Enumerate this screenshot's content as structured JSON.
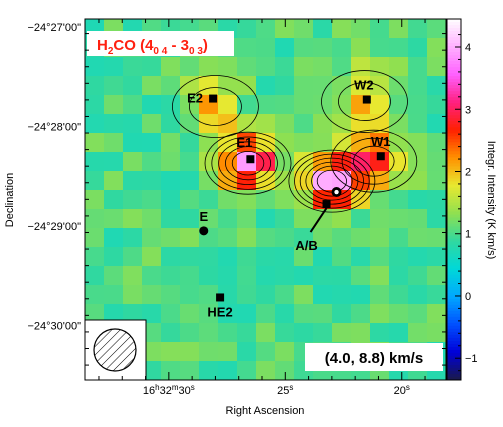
{
  "chart_data": {
    "type": "heatmap",
    "title_parts": {
      "pre": "H",
      "sub1": "2",
      "mid": "CO (4",
      "sub2": "0 4",
      "dash": " - 3",
      "sub3": "0 3",
      "post": ")"
    },
    "xlabel": "Right Ascension",
    "ylabel": "Declination",
    "colorbar_label": "Integr. Intensity (K km/s)",
    "velocity_range_label": "(4.0, 8.8) km/s",
    "x_tick_labels": [
      "16h32m30s",
      "25s",
      "20s"
    ],
    "x_tick_text": [
      {
        "main": "16",
        "sup1": "h",
        "mid": "32",
        "sup2": "m",
        "end": "30",
        "sup3": "s"
      },
      {
        "main": "25",
        "sup3": "s"
      },
      {
        "main": "20",
        "sup3": "s"
      }
    ],
    "x_ticks_seconds": [
      30,
      25,
      20
    ],
    "y_tick_labels": [
      "−24°27'00\"",
      "−24°28'00\"",
      "−24°29'00\"",
      "−24°30'00\""
    ],
    "y_ticks_arcmin": [
      27,
      28,
      29,
      30
    ],
    "xlim_seconds": [
      33.6,
      18.1
    ],
    "ylim_arcmin": [
      30.55,
      26.92
    ],
    "colorbar_ticks": [
      -1,
      0,
      1,
      2,
      3,
      4
    ],
    "colorbar_range": [
      -1.35,
      4.45
    ],
    "colormap_stops": [
      "#1a1a4a",
      "#0000d8",
      "#0050ff",
      "#00a8ff",
      "#00d8d8",
      "#30d8a0",
      "#90e050",
      "#e8e830",
      "#ff9000",
      "#ff2000",
      "#ff2080",
      "#ff60ff",
      "#ffb0ff",
      "#ffffff"
    ],
    "background_level": 1.0,
    "emission_peaks": [
      {
        "name": "E1",
        "ra_s": 26.6,
        "dec_arcmin": 28.37,
        "peak": 3.0,
        "spread": 0.25
      },
      {
        "name": "A/B",
        "ra_s": 23.0,
        "dec_arcmin": 28.55,
        "peak": 3.7,
        "spread": 0.22
      },
      {
        "name": "W1",
        "ra_s": 21.2,
        "dec_arcmin": 28.35,
        "peak": 2.0,
        "spread": 0.25
      },
      {
        "name": "W2",
        "ra_s": 21.6,
        "dec_arcmin": 27.75,
        "peak": 1.5,
        "spread": 0.35
      },
      {
        "name": "E2",
        "ra_s": 28.0,
        "dec_arcmin": 27.8,
        "peak": 1.3,
        "spread": 0.35
      }
    ],
    "sources": [
      {
        "name": "E2",
        "ra_s": 28.1,
        "dec_arcmin": 27.72,
        "marker": "square"
      },
      {
        "name": "E1",
        "ra_s": 26.5,
        "dec_arcmin": 28.33,
        "marker": "square"
      },
      {
        "name": "W2",
        "ra_s": 21.5,
        "dec_arcmin": 27.73,
        "marker": "square"
      },
      {
        "name": "W1",
        "ra_s": 20.9,
        "dec_arcmin": 28.3,
        "marker": "square"
      },
      {
        "name": "E",
        "ra_s": 28.5,
        "dec_arcmin": 29.05,
        "marker": "circle"
      },
      {
        "name": "HE2",
        "ra_s": 27.8,
        "dec_arcmin": 29.72,
        "marker": "square"
      },
      {
        "name": "A/B",
        "ra_s": 22.8,
        "dec_arcmin": 28.66,
        "marker": "ab"
      }
    ]
  }
}
